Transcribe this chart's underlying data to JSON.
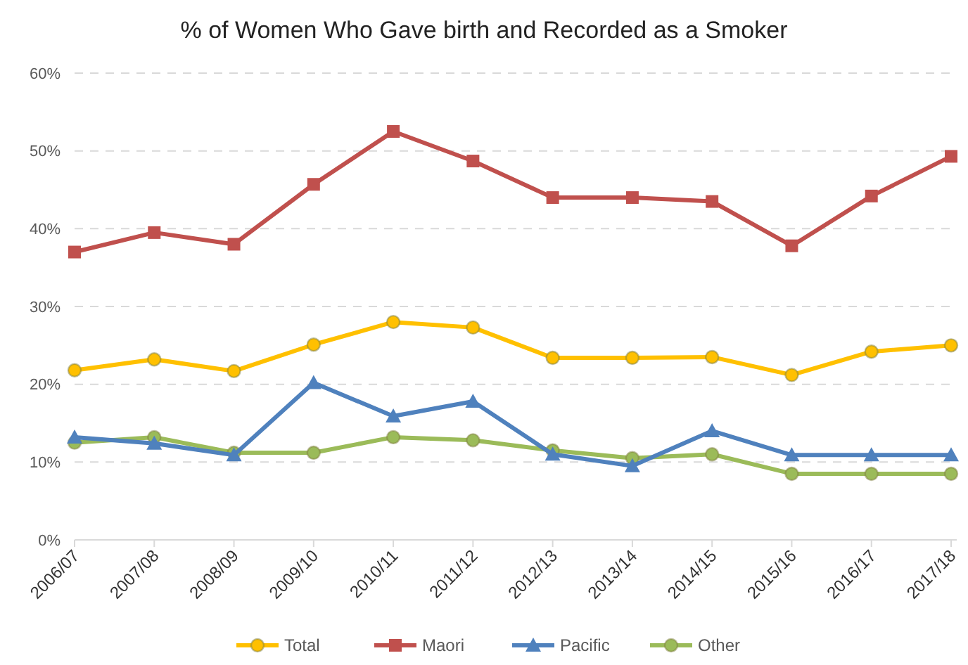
{
  "chart_data": {
    "type": "line",
    "title": "% of Women Who Gave birth and Recorded as a Smoker",
    "categories": [
      "2006/07",
      "2007/08",
      "2008/09",
      "2009/10",
      "2010/11",
      "2011/12",
      "2012/13",
      "2013/14",
      "2014/15",
      "2015/16",
      "2016/17",
      "2017/18"
    ],
    "series": [
      {
        "name": "Total",
        "color": "#ffc000",
        "marker": "circle",
        "values": [
          21.8,
          23.2,
          21.7,
          25.1,
          28,
          27.3,
          23.4,
          23.4,
          23.5,
          21.2,
          24.2,
          25
        ]
      },
      {
        "name": "Maori",
        "color": "#c0504d",
        "marker": "square",
        "values": [
          37,
          39.5,
          38,
          45.7,
          52.5,
          48.7,
          44,
          44,
          43.5,
          37.8,
          44.2,
          49.3
        ]
      },
      {
        "name": "Pacific",
        "color": "#4f81bd",
        "marker": "triangle",
        "values": [
          13.2,
          12.4,
          10.9,
          20.2,
          15.9,
          17.8,
          11,
          9.5,
          14,
          10.9,
          10.9,
          10.9
        ]
      },
      {
        "name": "Other",
        "color": "#9bbb59",
        "marker": "circle",
        "values": [
          12.5,
          13.2,
          11.2,
          11.2,
          13.2,
          12.8,
          11.5,
          10.5,
          11,
          8.5,
          8.5,
          8.5
        ]
      }
    ],
    "ylim": [
      0,
      60
    ],
    "yticks": [
      {
        "value": 0,
        "label": "0%"
      },
      {
        "value": 10,
        "label": "10%"
      },
      {
        "value": 20,
        "label": "20%"
      },
      {
        "value": 30,
        "label": "30%"
      },
      {
        "value": 40,
        "label": "40%"
      },
      {
        "value": 50,
        "label": "50%"
      },
      {
        "value": 60,
        "label": "60%"
      }
    ],
    "grid": "y",
    "legend": "bottom"
  }
}
